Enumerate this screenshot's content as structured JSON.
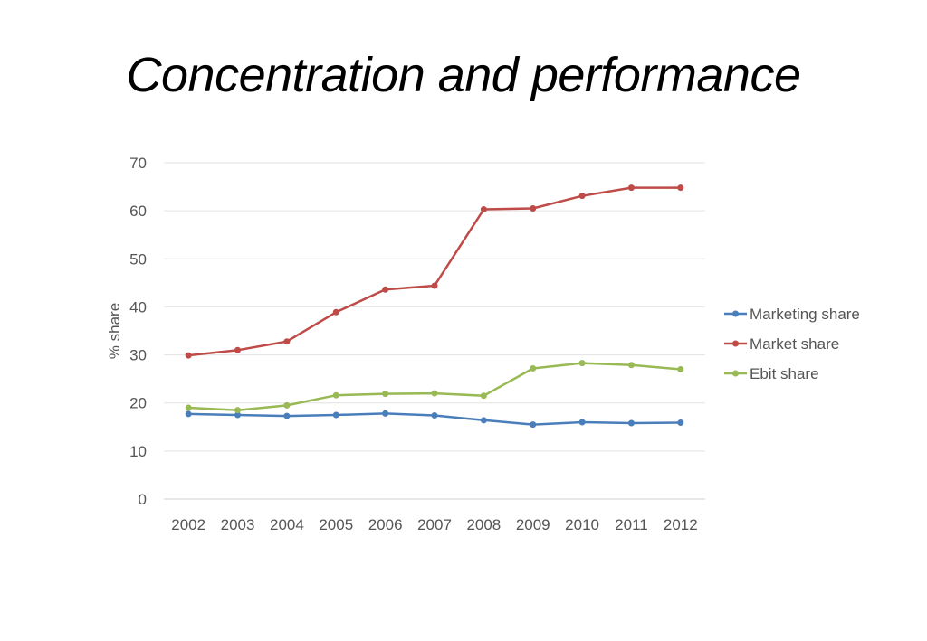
{
  "page": {
    "title": "Concentration and performance"
  },
  "chart_data": {
    "type": "line",
    "title": "",
    "xlabel": "",
    "ylabel": "% share",
    "ylim": [
      0,
      70
    ],
    "yticks": [
      0,
      10,
      20,
      30,
      40,
      50,
      60,
      70
    ],
    "grid": true,
    "legend_position": "right",
    "x": [
      "2002",
      "2003",
      "2004",
      "2005",
      "2006",
      "2007",
      "2008",
      "2009",
      "2010",
      "2011",
      "2012"
    ],
    "series": [
      {
        "name": "Marketing share",
        "color": "#4a7ebb",
        "values": [
          17.7,
          17.5,
          17.3,
          17.5,
          17.8,
          17.4,
          16.4,
          15.5,
          16.0,
          15.8,
          15.9
        ]
      },
      {
        "name": "Market share",
        "color": "#be4b48",
        "values": [
          29.9,
          31.0,
          32.8,
          38.9,
          43.6,
          44.4,
          60.3,
          60.5,
          63.1,
          64.8,
          64.8
        ]
      },
      {
        "name": "Ebit share",
        "color": "#98b954",
        "values": [
          19.0,
          18.5,
          19.5,
          21.6,
          21.9,
          22.0,
          21.5,
          27.2,
          28.3,
          27.9,
          27.0
        ]
      }
    ]
  }
}
